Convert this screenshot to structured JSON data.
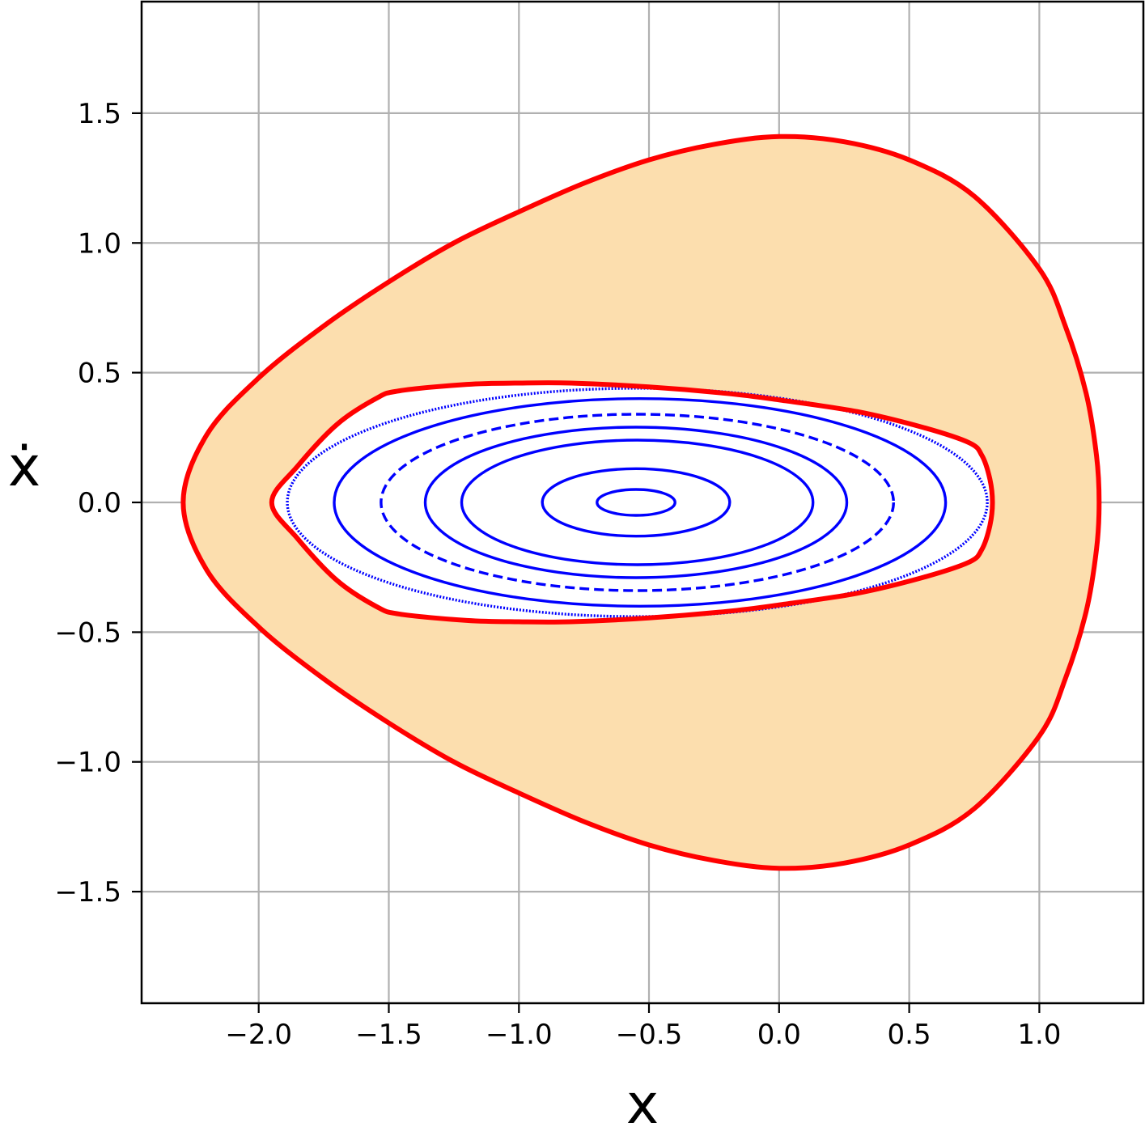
{
  "chart_data": {
    "type": "line",
    "title": "",
    "xlabel": "x",
    "ylabel": "ẋ",
    "xlim": [
      -2.45,
      1.4
    ],
    "ylim": [
      -1.93,
      1.93
    ],
    "grid": true,
    "legend": "none",
    "x_ticks": [
      -2.0,
      -1.5,
      -1.0,
      -0.5,
      0.0,
      0.5,
      1.0
    ],
    "x_tick_labels": [
      "−2.0",
      "−1.5",
      "−1.0",
      "−0.5",
      "0.0",
      "0.5",
      "1.0"
    ],
    "y_ticks": [
      1.5,
      1.0,
      0.5,
      0.0,
      -0.5,
      -1.0,
      -1.5
    ],
    "y_tick_labels": [
      "1.5",
      "1.0",
      "0.5",
      "0.0",
      "−0.5",
      "−1.0",
      "−1.5"
    ],
    "colors": {
      "fill": "#fcdeae",
      "boundary": "#ff0000",
      "orbits": "#0000ff",
      "grid": "#b0b0b0",
      "axes": "#000000"
    },
    "outer_region": {
      "x": [
        -2.29,
        -2.2,
        -2.0,
        -1.75,
        -1.5,
        -1.25,
        -1.0,
        -0.75,
        -0.5,
        -0.25,
        0.0,
        0.25,
        0.5,
        0.75,
        1.0,
        1.1,
        1.18,
        1.22,
        1.23
      ],
      "y": [
        0.0,
        0.26,
        0.48,
        0.68,
        0.85,
        1.0,
        1.12,
        1.23,
        1.32,
        1.38,
        1.41,
        1.39,
        1.32,
        1.18,
        0.9,
        0.68,
        0.42,
        0.18,
        0.0
      ]
    },
    "inner_boundary": {
      "x": [
        -1.95,
        -1.85,
        -1.7,
        -1.55,
        -1.46,
        -1.2,
        -1.0,
        -0.8,
        -0.5,
        -0.2,
        0.0,
        0.3,
        0.55,
        0.73,
        0.78,
        0.81,
        0.82
      ],
      "y": [
        0.0,
        0.14,
        0.3,
        0.4,
        0.43,
        0.455,
        0.46,
        0.46,
        0.445,
        0.42,
        0.395,
        0.35,
        0.29,
        0.23,
        0.18,
        0.09,
        0.0
      ]
    },
    "orbits": [
      {
        "center_x": -0.54,
        "xmin": -0.7,
        "xmax": -0.4,
        "ymax": 0.05,
        "style": "solid"
      },
      {
        "center_x": -0.54,
        "xmin": -0.91,
        "xmax": -0.19,
        "ymax": 0.13,
        "style": "solid"
      },
      {
        "center_x": -0.54,
        "xmin": -1.22,
        "xmax": 0.13,
        "ymax": 0.24,
        "style": "solid"
      },
      {
        "center_x": -0.54,
        "xmin": -1.36,
        "xmax": 0.26,
        "ymax": 0.29,
        "style": "solid"
      },
      {
        "center_x": -0.54,
        "xmin": -1.53,
        "xmax": 0.44,
        "ymax": 0.34,
        "style": "dashed"
      },
      {
        "center_x": -0.54,
        "xmin": -1.71,
        "xmax": 0.64,
        "ymax": 0.4,
        "style": "solid"
      },
      {
        "center_x": -0.54,
        "xmin": -1.89,
        "xmax": 0.8,
        "ymax": 0.44,
        "style": "dotted"
      }
    ]
  }
}
